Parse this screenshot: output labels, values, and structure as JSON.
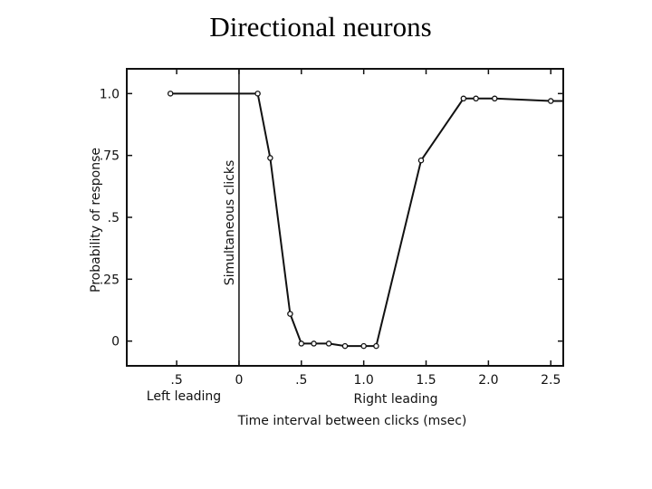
{
  "slide": {
    "title": "Directional neurons"
  },
  "chart_data": {
    "type": "line",
    "title": "",
    "xlabel": "Time interval between clicks (msec)",
    "ylabel": "Probability of response",
    "x_side_labels": {
      "left": "Left leading",
      "right": "Right leading"
    },
    "annotation": "Simultaneous clicks",
    "xlim": [
      -0.9,
      2.6
    ],
    "ylim": [
      -0.1,
      1.1
    ],
    "x_ticks": [
      {
        "value": -0.5,
        "label": ".5"
      },
      {
        "value": 0,
        "label": "0"
      },
      {
        "value": 0.5,
        "label": ".5"
      },
      {
        "value": 1.0,
        "label": "1.0"
      },
      {
        "value": 1.5,
        "label": "1.5"
      },
      {
        "value": 2.0,
        "label": "2.0"
      },
      {
        "value": 2.5,
        "label": "2.5"
      }
    ],
    "y_ticks": [
      {
        "value": 0,
        "label": "0"
      },
      {
        "value": 0.25,
        "label": ".25"
      },
      {
        "value": 0.5,
        "label": ".5"
      },
      {
        "value": 0.75,
        "label": ".75"
      },
      {
        "value": 1.0,
        "label": "1.0"
      }
    ],
    "series": [
      {
        "x": [
          -0.55,
          0.15,
          0.25,
          0.41,
          0.5,
          0.6,
          0.72,
          0.85,
          1.0,
          1.1,
          1.46,
          1.8,
          1.9,
          2.05,
          2.5
        ],
        "y": [
          1.0,
          1.0,
          0.74,
          0.11,
          -0.01,
          -0.01,
          -0.01,
          -0.02,
          -0.02,
          -0.02,
          0.73,
          0.98,
          0.98,
          0.98,
          0.97
        ]
      }
    ]
  }
}
